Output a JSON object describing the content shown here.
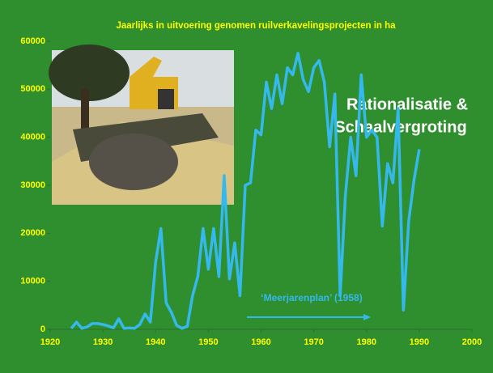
{
  "chart_data": {
    "type": "line",
    "title": "Jaarlijks in uitvoering genomen ruilverkavelingsprojecten in ha",
    "x": [
      1924,
      1925,
      1926,
      1927,
      1928,
      1929,
      1930,
      1931,
      1932,
      1933,
      1934,
      1935,
      1936,
      1937,
      1938,
      1939,
      1940,
      1941,
      1942,
      1943,
      1944,
      1945,
      1946,
      1947,
      1948,
      1949,
      1950,
      1951,
      1952,
      1953,
      1954,
      1955,
      1956,
      1957,
      1958,
      1959,
      1960,
      1961,
      1962,
      1963,
      1964,
      1965,
      1966,
      1967,
      1968,
      1969,
      1970,
      1971,
      1972,
      1973,
      1974,
      1975,
      1976,
      1977,
      1978,
      1979,
      1980,
      1981,
      1982,
      1983,
      1984,
      1985,
      1986,
      1987,
      1988,
      1989,
      1990
    ],
    "series": [
      {
        "color": "#35b8ec",
        "values": [
          200,
          1500,
          200,
          500,
          1200,
          1200,
          1000,
          700,
          300,
          2200,
          200,
          300,
          200,
          1000,
          3200,
          1500,
          14000,
          21000,
          5500,
          3500,
          800,
          200,
          600,
          7000,
          11000,
          21000,
          12500,
          21000,
          11000,
          32000,
          10500,
          18000,
          7000,
          30000,
          30500,
          41500,
          40500,
          51500,
          46000,
          53000,
          47000,
          54500,
          53000,
          57500,
          52000,
          49500,
          54500,
          56000,
          51500,
          38000,
          49000,
          7000,
          28000,
          40000,
          32000,
          53000,
          40000,
          41500,
          40000,
          21500,
          34500,
          30500,
          46000,
          4000,
          22500,
          31000,
          37500
        ]
      }
    ],
    "xlim": [
      1920,
      2000
    ],
    "xticks": [
      1920,
      1930,
      1940,
      1950,
      1960,
      1970,
      1980,
      1990,
      2000
    ],
    "ylim": [
      0,
      60000
    ],
    "yticks": [
      0,
      10000,
      20000,
      30000,
      40000,
      50000,
      60000
    ],
    "annotations": [
      "Rationalisatie &",
      "Schaalvergroting",
      "‘Meerjarenplan’ (1958)"
    ]
  }
}
